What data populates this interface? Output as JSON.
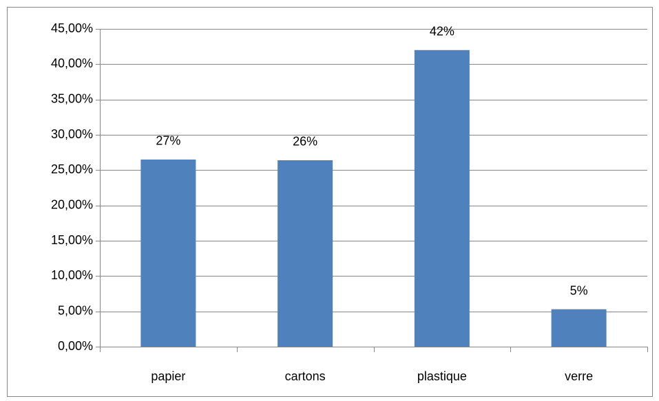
{
  "chart_data": {
    "type": "bar",
    "categories": [
      "papier",
      "cartons",
      "plastique",
      "verre"
    ],
    "values": [
      26.5,
      26.4,
      42.0,
      5.3
    ],
    "value_labels": [
      "27%",
      "26%",
      "42%",
      "5%"
    ],
    "color": "#4f81bd",
    "ylim": [
      0,
      45
    ],
    "yticks": [
      {
        "value": 0,
        "label": "0,00%"
      },
      {
        "value": 5,
        "label": "5,00%"
      },
      {
        "value": 10,
        "label": "10,00%"
      },
      {
        "value": 15,
        "label": "15,00%"
      },
      {
        "value": 20,
        "label": "20,00%"
      },
      {
        "value": 25,
        "label": "25,00%"
      },
      {
        "value": 30,
        "label": "30,00%"
      },
      {
        "value": 35,
        "label": "35,00%"
      },
      {
        "value": 40,
        "label": "40,00%"
      },
      {
        "value": 45,
        "label": "45,00%"
      }
    ],
    "grid": true
  }
}
